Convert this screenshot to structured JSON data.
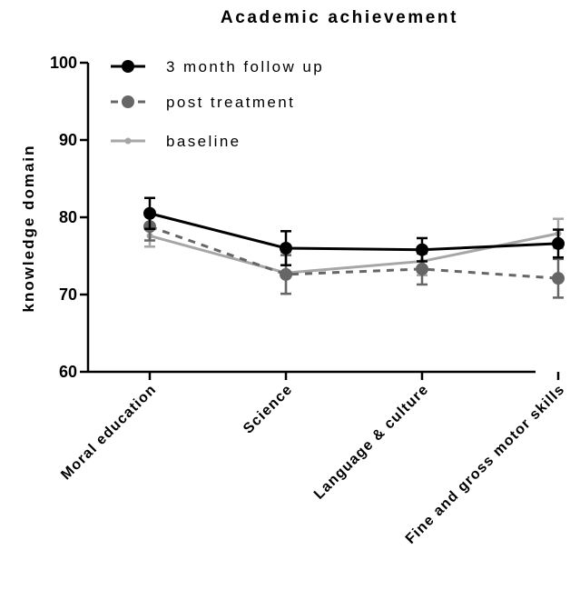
{
  "chart_data": {
    "type": "line",
    "title": "Academic achievement",
    "xlabel": "",
    "ylabel": "knowledge domain",
    "ylim": [
      60,
      100
    ],
    "yticks": [
      60,
      70,
      80,
      90,
      100
    ],
    "categories": [
      "Moral education",
      "Science",
      "Language & culture",
      "Fine and gross motor skills"
    ],
    "legend_position": "top-left",
    "grid": false,
    "series": [
      {
        "name": "3 month follow up",
        "values": [
          80.5,
          76.0,
          75.8,
          76.6
        ],
        "error": [
          2.0,
          2.2,
          1.5,
          1.8
        ],
        "color": "#000000",
        "line_style": "solid",
        "marker": "circle"
      },
      {
        "name": "post treatment",
        "values": [
          78.8,
          72.6,
          73.3,
          72.1
        ],
        "error": [
          1.8,
          2.5,
          2.0,
          2.5
        ],
        "color": "#666666",
        "line_style": "dashed",
        "marker": "circle"
      },
      {
        "name": "baseline",
        "values": [
          77.6,
          72.8,
          74.3,
          77.9
        ],
        "error": [
          1.4,
          2.7,
          1.8,
          1.9
        ],
        "color": "#a6a6a6",
        "line_style": "solid",
        "marker": "small-circle"
      }
    ]
  }
}
